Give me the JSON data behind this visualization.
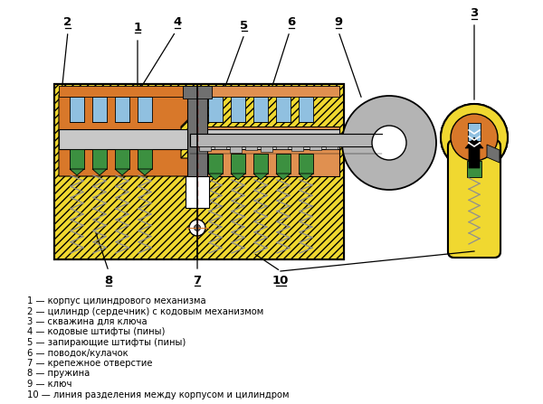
{
  "bg_color": "#ffffff",
  "colors": {
    "yellow": "#f0d830",
    "orange": "#d8782a",
    "orange_mid": "#e09050",
    "blue_pin": "#90c0e0",
    "green_pin": "#3c9040",
    "gray_key": "#b4b4b4",
    "gray_spring": "#909090",
    "gray_cam": "#707070",
    "gray_light": "#c8c8c8",
    "black": "#000000",
    "white": "#ffffff",
    "red_dash": "#cc0000"
  },
  "legend_items": [
    "1 — корпус цилиндрового механизма",
    "2 — цилиндр (сердечник) с кодовым механизмом",
    "3 — скважина для ключа",
    "4 — кодовые штифты (пины)",
    "5 — запирающие штифты (пины)",
    "6 — поводок/кулачок",
    "7 — крепежное отверстие",
    "8 — пружина",
    "9 — ключ",
    "10 — линия разделения между корпусом и цилиндром"
  ]
}
